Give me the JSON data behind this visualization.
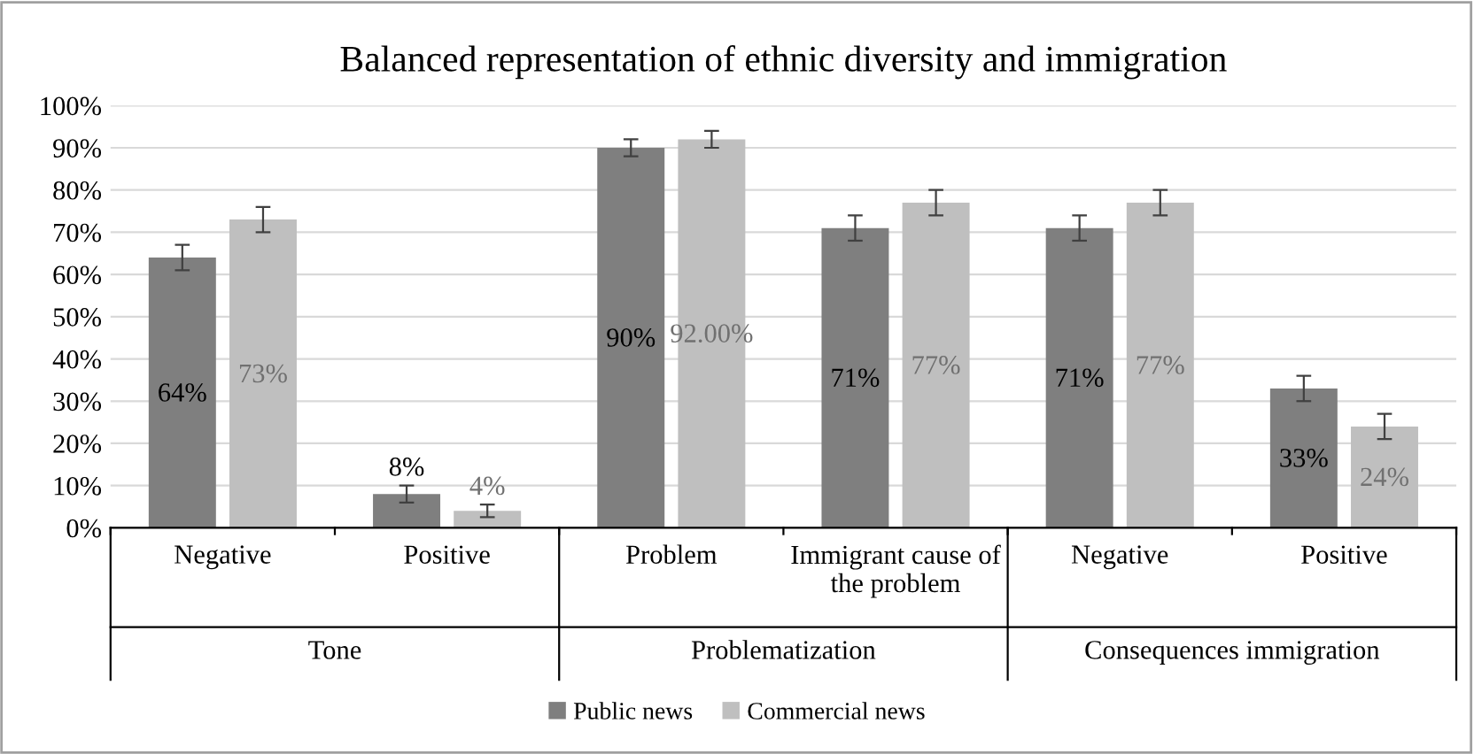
{
  "chart_data": {
    "type": "bar",
    "title": "Balanced representation of ethnic diversity and immigration",
    "categories": [
      "Negative",
      "Positive",
      "Problem",
      "Immigrant cause of the problem",
      "Negative",
      "Positive"
    ],
    "annotations": [
      "Tone",
      "Problematization",
      "Consequences immigration"
    ],
    "series": [
      {
        "name": "Public news",
        "color": "#7f7f7f",
        "values": [
          64,
          8,
          90,
          71,
          71,
          33
        ],
        "errors": [
          3,
          2,
          2,
          3,
          3,
          3
        ],
        "value_labels": [
          "64%",
          "8%",
          "90%",
          "71%",
          "71%",
          "33%"
        ]
      },
      {
        "name": "Commercial news",
        "color": "#bfbfbf",
        "values": [
          73,
          4,
          92,
          77,
          77,
          24
        ],
        "errors": [
          3,
          1.5,
          2,
          3,
          3,
          3
        ],
        "value_labels": [
          "73%",
          "4%",
          "92.00%",
          "77%",
          "77%",
          "24%"
        ]
      }
    ],
    "ylim": [
      0,
      100
    ],
    "yticks": [
      {
        "value": 0,
        "label": "0%"
      },
      {
        "value": 10,
        "label": "10%"
      },
      {
        "value": 20,
        "label": "20%"
      },
      {
        "value": 30,
        "label": "30%"
      },
      {
        "value": 40,
        "label": "40%"
      },
      {
        "value": 50,
        "label": "50%"
      },
      {
        "value": 60,
        "label": "60%"
      },
      {
        "value": 70,
        "label": "70%"
      },
      {
        "value": 80,
        "label": "80%"
      },
      {
        "value": 90,
        "label": "90%"
      },
      {
        "value": 100,
        "label": "100%"
      }
    ],
    "grid": "y",
    "legend": "bottom"
  }
}
